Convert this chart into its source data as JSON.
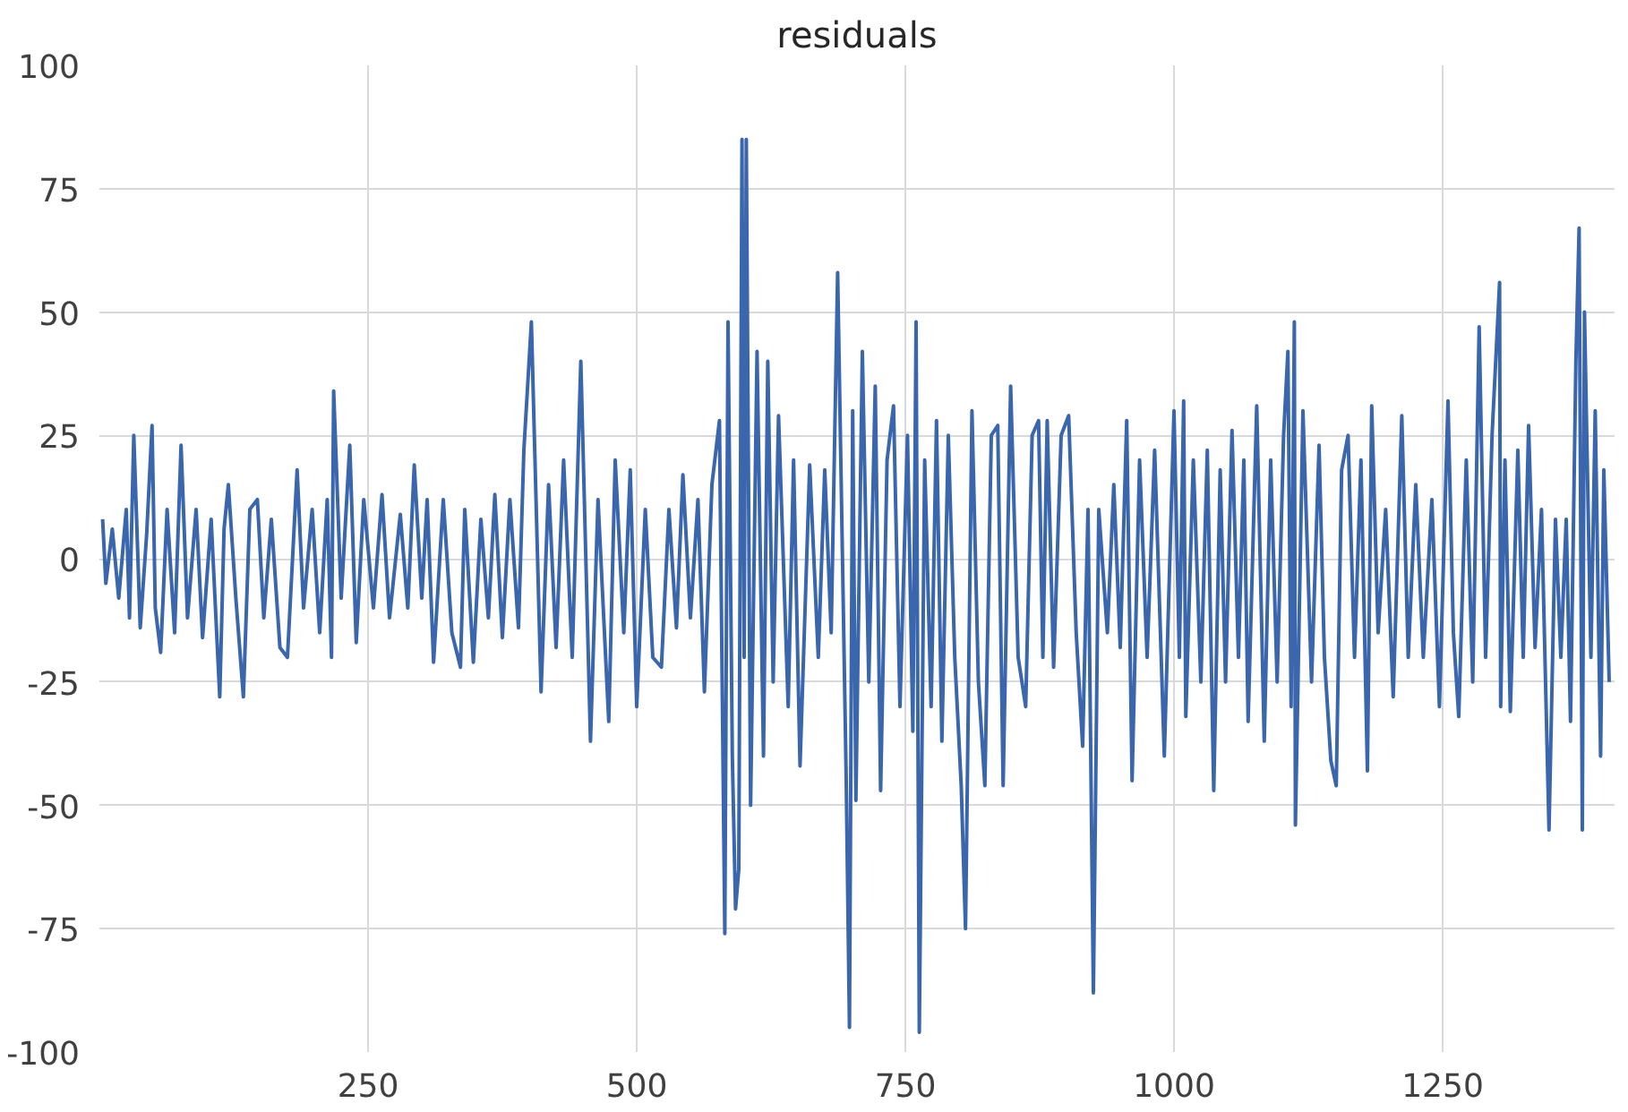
{
  "chart_data": {
    "type": "line",
    "title": "residuals",
    "x": [
      3,
      6,
      12,
      18,
      25,
      28,
      32,
      38,
      44,
      49,
      52,
      57,
      63,
      70,
      76,
      82,
      90,
      96,
      104,
      112,
      116,
      120,
      127,
      134,
      140,
      147,
      153,
      160,
      168,
      175,
      184,
      190,
      198,
      205,
      212,
      216,
      218,
      225,
      233,
      239,
      246,
      255,
      263,
      270,
      280,
      287,
      293,
      300,
      305,
      311,
      320,
      328,
      336,
      340,
      348,
      355,
      362,
      368,
      375,
      382,
      390,
      395,
      402,
      411,
      418,
      425,
      432,
      440,
      448,
      457,
      464,
      474,
      480,
      488,
      494,
      500,
      508,
      515,
      523,
      530,
      537,
      543,
      550,
      557,
      563,
      570,
      577,
      582,
      585,
      589,
      592,
      595,
      598,
      600,
      602,
      606,
      612,
      618,
      622,
      627,
      632,
      641,
      646,
      652,
      661,
      669,
      675,
      681,
      687,
      695,
      698,
      701,
      704,
      710,
      716,
      722,
      727,
      733,
      739,
      745,
      752,
      757,
      760,
      763,
      768,
      774,
      779,
      784,
      790,
      796,
      802,
      806,
      812,
      818,
      824,
      830,
      836,
      841,
      848,
      855,
      862,
      868,
      874,
      878,
      882,
      888,
      895,
      902,
      909,
      915,
      920,
      925,
      930,
      938,
      944,
      950,
      956,
      961,
      968,
      975,
      982,
      991,
      1000,
      1005,
      1009,
      1011,
      1018,
      1025,
      1031,
      1037,
      1043,
      1048,
      1054,
      1060,
      1065,
      1069,
      1077,
      1084,
      1090,
      1096,
      1102,
      1106,
      1109,
      1112,
      1113,
      1120,
      1128,
      1135,
      1140,
      1146,
      1151,
      1156,
      1162,
      1168,
      1174,
      1180,
      1184,
      1190,
      1197,
      1204,
      1212,
      1218,
      1225,
      1232,
      1240,
      1247,
      1255,
      1260,
      1265,
      1272,
      1278,
      1284,
      1290,
      1296,
      1303,
      1304,
      1308,
      1313,
      1320,
      1325,
      1330,
      1336,
      1342,
      1349,
      1355,
      1360,
      1365,
      1369,
      1374,
      1377,
      1380,
      1382,
      1388,
      1392,
      1397,
      1400,
      1405
    ],
    "series": [
      {
        "color": "#3a66ad",
        "values": [
          8,
          -5,
          6,
          -8,
          10,
          -12,
          25,
          -14,
          5,
          27,
          -10,
          -19,
          10,
          -15,
          23,
          -12,
          10,
          -16,
          8,
          -28,
          6,
          15,
          -8,
          -28,
          10,
          12,
          -12,
          8,
          -18,
          -20,
          18,
          -10,
          10,
          -15,
          12,
          -20,
          34,
          -8,
          23,
          -17,
          12,
          -10,
          13,
          -12,
          9,
          -10,
          19,
          -8,
          12,
          -21,
          12,
          -15,
          -22,
          10,
          -21,
          8,
          -12,
          13,
          -16,
          12,
          -14,
          22,
          48,
          -27,
          15,
          -18,
          20,
          -20,
          40,
          -37,
          12,
          -33,
          20,
          -15,
          18,
          -30,
          10,
          -20,
          -22,
          10,
          -14,
          17,
          -12,
          12,
          -27,
          15,
          28,
          -76,
          48,
          -40,
          -71,
          -63,
          85,
          -20,
          85,
          -50,
          42,
          -40,
          40,
          -25,
          29,
          -30,
          20,
          -42,
          19,
          -20,
          18,
          -15,
          58,
          -45,
          -95,
          30,
          -49,
          42,
          -25,
          35,
          -47,
          20,
          31,
          -30,
          25,
          -35,
          48,
          -96,
          20,
          -30,
          28,
          -37,
          25,
          -20,
          -46,
          -75,
          30,
          -25,
          -46,
          25,
          27,
          -46,
          35,
          -20,
          -30,
          25,
          28,
          -20,
          28,
          -22,
          25,
          29,
          -15,
          -38,
          10,
          -88,
          10,
          -15,
          15,
          -18,
          28,
          -45,
          20,
          -20,
          22,
          -40,
          30,
          -20,
          32,
          -32,
          20,
          -25,
          22,
          -47,
          18,
          -25,
          26,
          -20,
          20,
          -33,
          31,
          -37,
          20,
          -25,
          25,
          42,
          -30,
          48,
          -54,
          30,
          -25,
          23,
          -20,
          -41,
          -46,
          18,
          25,
          -20,
          20,
          -43,
          31,
          -15,
          10,
          -28,
          29,
          -20,
          15,
          -20,
          12,
          -30,
          32,
          -15,
          -32,
          20,
          -25,
          47,
          -20,
          25,
          56,
          -30,
          20,
          -31,
          22,
          -20,
          27,
          -18,
          10,
          -55,
          8,
          -20,
          8,
          -33,
          40,
          67,
          -55,
          50,
          -20,
          30,
          -40,
          18,
          -25
        ]
      }
    ],
    "xlim": [
      0,
      1410
    ],
    "ylim": [
      -100,
      100
    ],
    "xticks": [
      250,
      500,
      750,
      1000,
      1250
    ],
    "yticks": [
      -100,
      -75,
      -50,
      -25,
      0,
      25,
      50,
      75,
      100
    ],
    "grid": true
  }
}
